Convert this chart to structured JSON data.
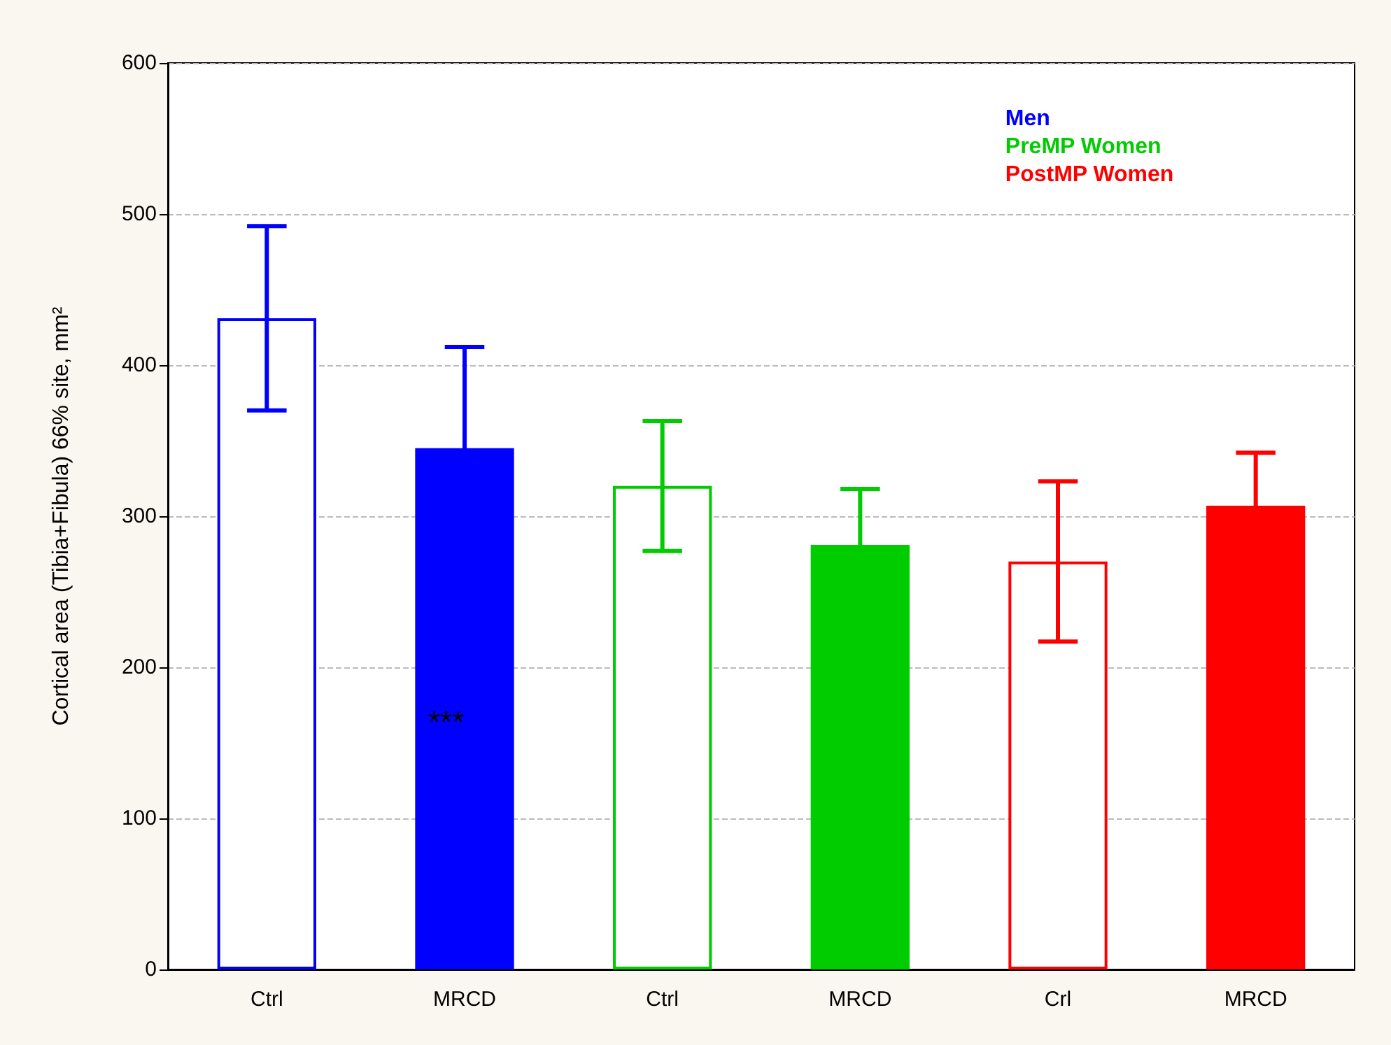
{
  "chart_data": {
    "type": "bar",
    "ylabel": "Cortical area (Tibia+Fibula) 66% site, mm²",
    "categories": [
      "Ctrl",
      "MRCD",
      "Ctrl",
      "MRCD",
      "Crl",
      "MRCD"
    ],
    "series": [
      {
        "name": "Men",
        "color": "#0000ff",
        "colors": [
          "#ffffff",
          "#0000ff",
          null,
          null,
          null,
          null
        ],
        "values": [
          431,
          345,
          null,
          null,
          null,
          null
        ],
        "errors": [
          61,
          67,
          null,
          null,
          null,
          null
        ]
      },
      {
        "name": "PreMP Women",
        "color": "#00cc00",
        "colors": [
          null,
          null,
          "#ffffff",
          "#00cc00",
          null,
          null
        ],
        "values": [
          null,
          null,
          320,
          281,
          null,
          null
        ],
        "errors": [
          null,
          null,
          43,
          37,
          null,
          null
        ]
      },
      {
        "name": "PostMP Women",
        "color": "#ff0000",
        "colors": [
          null,
          null,
          null,
          null,
          "#ffffff",
          "#ff0000"
        ],
        "values": [
          null,
          null,
          null,
          null,
          270,
          307
        ],
        "errors": [
          null,
          null,
          null,
          null,
          53,
          35
        ]
      }
    ],
    "ylim": [
      0,
      600
    ],
    "yticks": [
      0,
      100,
      200,
      300,
      400,
      500,
      600
    ],
    "grid": "y",
    "legend": "top right",
    "annotations": [
      "***"
    ]
  }
}
